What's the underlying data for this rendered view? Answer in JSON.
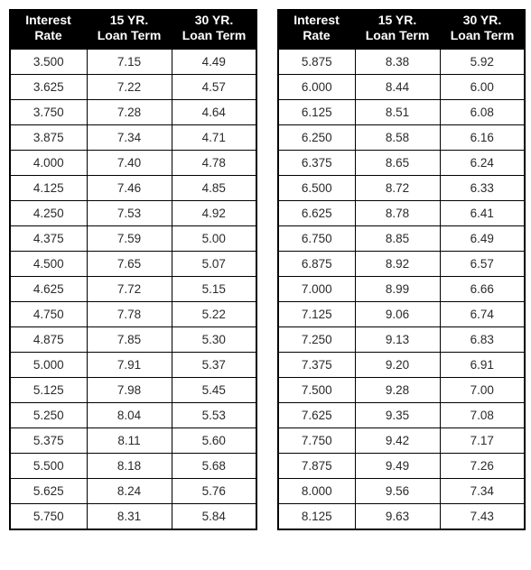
{
  "headers": {
    "col1_line1": "Interest",
    "col1_line2": "Rate",
    "col2_line1": "15 YR.",
    "col2_line2": "Loan Term",
    "col3_line1": "30 YR.",
    "col3_line2": "Loan Term"
  },
  "tableLeft": {
    "rows": [
      {
        "rate": "3.500",
        "y15": "7.15",
        "y30": "4.49"
      },
      {
        "rate": "3.625",
        "y15": "7.22",
        "y30": "4.57"
      },
      {
        "rate": "3.750",
        "y15": "7.28",
        "y30": "4.64"
      },
      {
        "rate": "3.875",
        "y15": "7.34",
        "y30": "4.71"
      },
      {
        "rate": "4.000",
        "y15": "7.40",
        "y30": "4.78"
      },
      {
        "rate": "4.125",
        "y15": "7.46",
        "y30": "4.85"
      },
      {
        "rate": "4.250",
        "y15": "7.53",
        "y30": "4.92"
      },
      {
        "rate": "4.375",
        "y15": "7.59",
        "y30": "5.00"
      },
      {
        "rate": "4.500",
        "y15": "7.65",
        "y30": "5.07"
      },
      {
        "rate": "4.625",
        "y15": "7.72",
        "y30": "5.15"
      },
      {
        "rate": "4.750",
        "y15": "7.78",
        "y30": "5.22"
      },
      {
        "rate": "4.875",
        "y15": "7.85",
        "y30": "5.30"
      },
      {
        "rate": "5.000",
        "y15": "7.91",
        "y30": "5.37"
      },
      {
        "rate": "5.125",
        "y15": "7.98",
        "y30": "5.45"
      },
      {
        "rate": "5.250",
        "y15": "8.04",
        "y30": "5.53"
      },
      {
        "rate": "5.375",
        "y15": "8.11",
        "y30": "5.60"
      },
      {
        "rate": "5.500",
        "y15": "8.18",
        "y30": "5.68"
      },
      {
        "rate": "5.625",
        "y15": "8.24",
        "y30": "5.76"
      },
      {
        "rate": "5.750",
        "y15": "8.31",
        "y30": "5.84"
      }
    ]
  },
  "tableRight": {
    "rows": [
      {
        "rate": "5.875",
        "y15": "8.38",
        "y30": "5.92"
      },
      {
        "rate": "6.000",
        "y15": "8.44",
        "y30": "6.00"
      },
      {
        "rate": "6.125",
        "y15": "8.51",
        "y30": "6.08"
      },
      {
        "rate": "6.250",
        "y15": "8.58",
        "y30": "6.16"
      },
      {
        "rate": "6.375",
        "y15": "8.65",
        "y30": "6.24"
      },
      {
        "rate": "6.500",
        "y15": "8.72",
        "y30": "6.33"
      },
      {
        "rate": "6.625",
        "y15": "8.78",
        "y30": "6.41"
      },
      {
        "rate": "6.750",
        "y15": "8.85",
        "y30": "6.49"
      },
      {
        "rate": "6.875",
        "y15": "8.92",
        "y30": "6.57"
      },
      {
        "rate": "7.000",
        "y15": "8.99",
        "y30": "6.66"
      },
      {
        "rate": "7.125",
        "y15": "9.06",
        "y30": "6.74"
      },
      {
        "rate": "7.250",
        "y15": "9.13",
        "y30": "6.83"
      },
      {
        "rate": "7.375",
        "y15": "9.20",
        "y30": "6.91"
      },
      {
        "rate": "7.500",
        "y15": "9.28",
        "y30": "7.00"
      },
      {
        "rate": "7.625",
        "y15": "9.35",
        "y30": "7.08"
      },
      {
        "rate": "7.750",
        "y15": "9.42",
        "y30": "7.17"
      },
      {
        "rate": "7.875",
        "y15": "9.49",
        "y30": "7.26"
      },
      {
        "rate": "8.000",
        "y15": "9.56",
        "y30": "7.34"
      },
      {
        "rate": "8.125",
        "y15": "9.63",
        "y30": "7.43"
      }
    ]
  }
}
